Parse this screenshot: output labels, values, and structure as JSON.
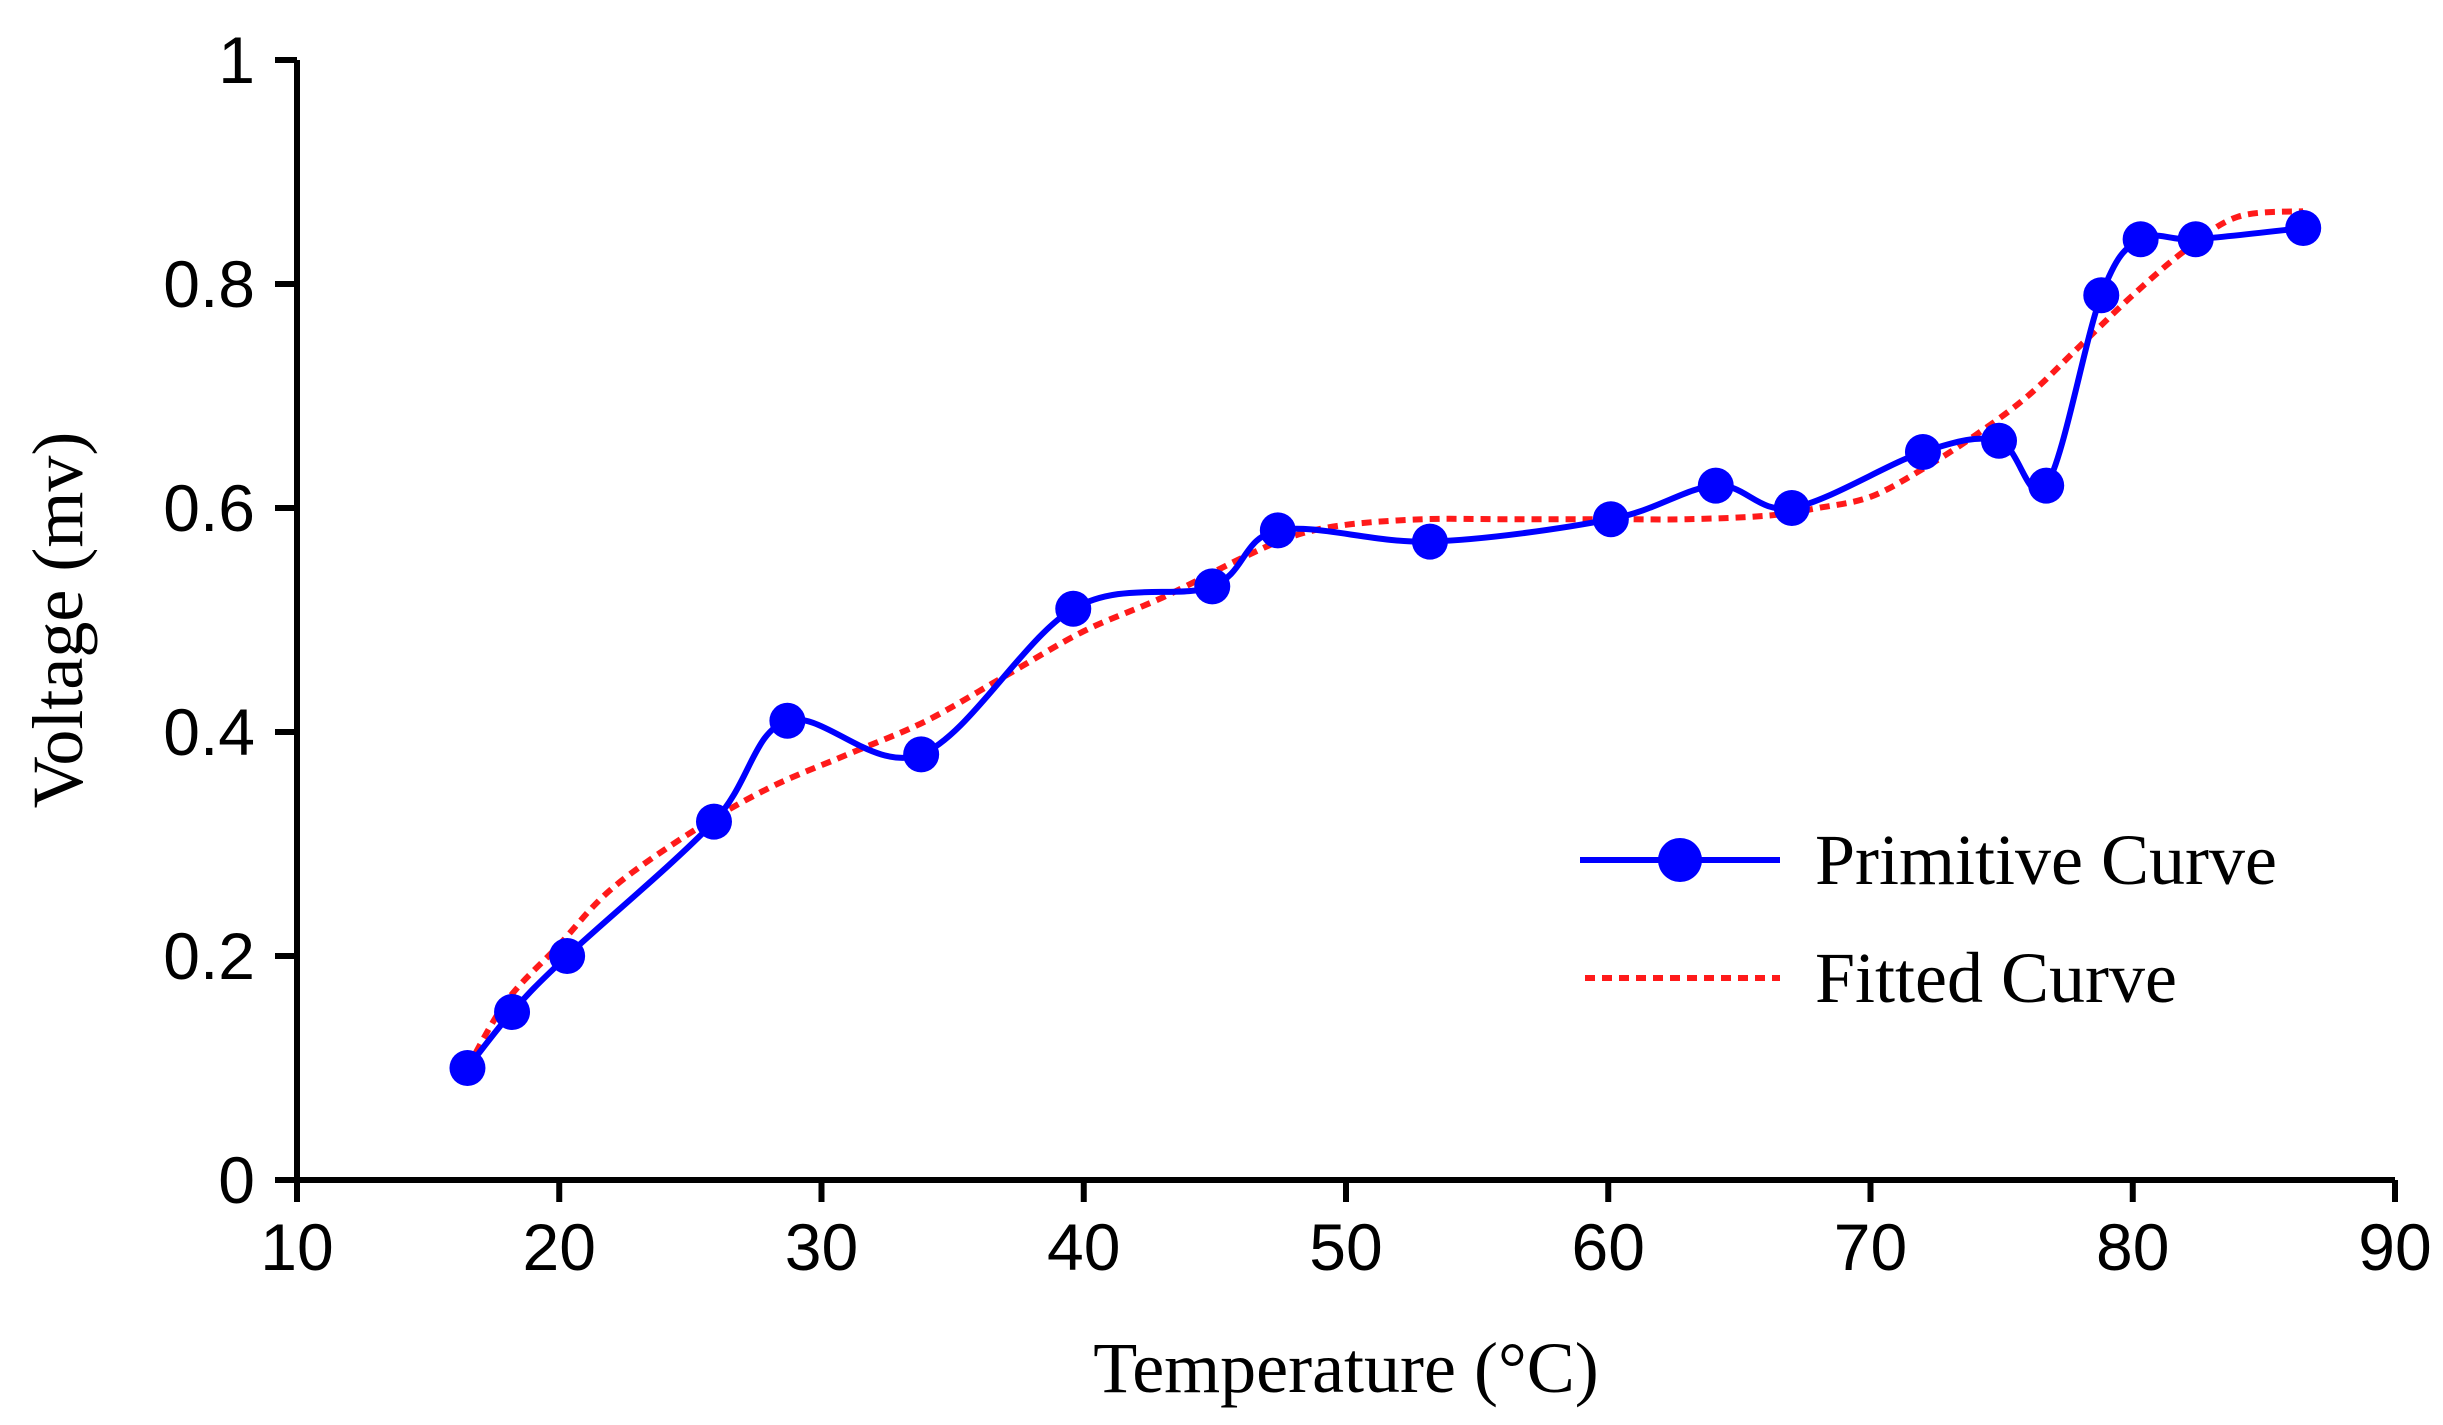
{
  "chart_data": {
    "type": "line",
    "title": "",
    "xlabel": "Temperature (°C)",
    "ylabel": "Voltage (mv)",
    "xlim": [
      10,
      90
    ],
    "ylim": [
      0,
      1
    ],
    "xticks": [
      "10",
      "20",
      "30",
      "40",
      "50",
      "60",
      "70",
      "80",
      "90"
    ],
    "yticks": [
      "0",
      "0.2",
      "0.4",
      "0.6",
      "0.8",
      "1"
    ],
    "grid": false,
    "legend_position": "lower-right",
    "series": [
      {
        "name": "Primitive Curve",
        "color": "#0000ff",
        "style": "solid",
        "markers": true,
        "x": [
          16.5,
          18.2,
          20.3,
          25.9,
          28.7,
          33.8,
          39.6,
          44.9,
          47.4,
          53.2,
          60.1,
          64.1,
          67.0,
          72.0,
          74.9,
          76.7,
          78.8,
          80.3,
          82.4,
          86.5
        ],
        "y": [
          0.1,
          0.15,
          0.2,
          0.32,
          0.41,
          0.38,
          0.51,
          0.53,
          0.58,
          0.57,
          0.59,
          0.62,
          0.6,
          0.65,
          0.66,
          0.62,
          0.79,
          0.84,
          0.84,
          0.85
        ]
      },
      {
        "name": "Fitted Curve",
        "color": "#ff1a1a",
        "style": "dotted",
        "markers": false,
        "x": [
          16.5,
          18,
          20,
          22,
          25,
          28,
          31,
          34,
          37,
          40,
          43,
          46,
          48,
          50,
          53,
          56,
          60,
          63,
          66,
          68,
          70,
          72,
          74,
          76,
          78,
          80,
          82,
          84,
          86.5
        ],
        "y": [
          0.1,
          0.16,
          0.21,
          0.26,
          0.31,
          0.35,
          0.38,
          0.41,
          0.45,
          0.49,
          0.52,
          0.555,
          0.575,
          0.585,
          0.59,
          0.59,
          0.59,
          0.59,
          0.593,
          0.6,
          0.61,
          0.635,
          0.665,
          0.7,
          0.745,
          0.79,
          0.83,
          0.86,
          0.865
        ]
      }
    ]
  }
}
